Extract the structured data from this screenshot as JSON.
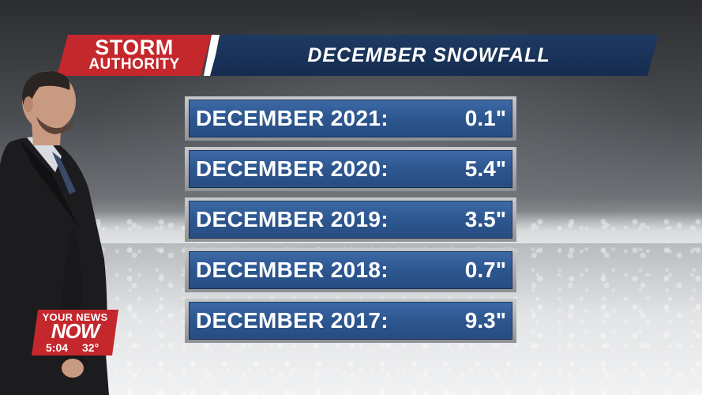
{
  "header": {
    "brand_line1": "STORM",
    "brand_line2": "AUTHORITY",
    "title": "DECEMBER SNOWFALL"
  },
  "rows": [
    {
      "label": "DECEMBER 2021:",
      "value": "0.1\""
    },
    {
      "label": "DECEMBER 2020:",
      "value": "5.4\""
    },
    {
      "label": "DECEMBER 2019:",
      "value": "3.5\""
    },
    {
      "label": "DECEMBER 2018:",
      "value": "0.7\""
    },
    {
      "label": "DECEMBER 2017:",
      "value": "9.3\""
    }
  ],
  "logo": {
    "line1": "YOUR NEWS",
    "line2": "NOW",
    "time": "5:04",
    "temp": "32°"
  },
  "colors": {
    "brand_red": "#c4272c",
    "title_navy": "#152c4f",
    "row_blue": "#2d568f"
  }
}
